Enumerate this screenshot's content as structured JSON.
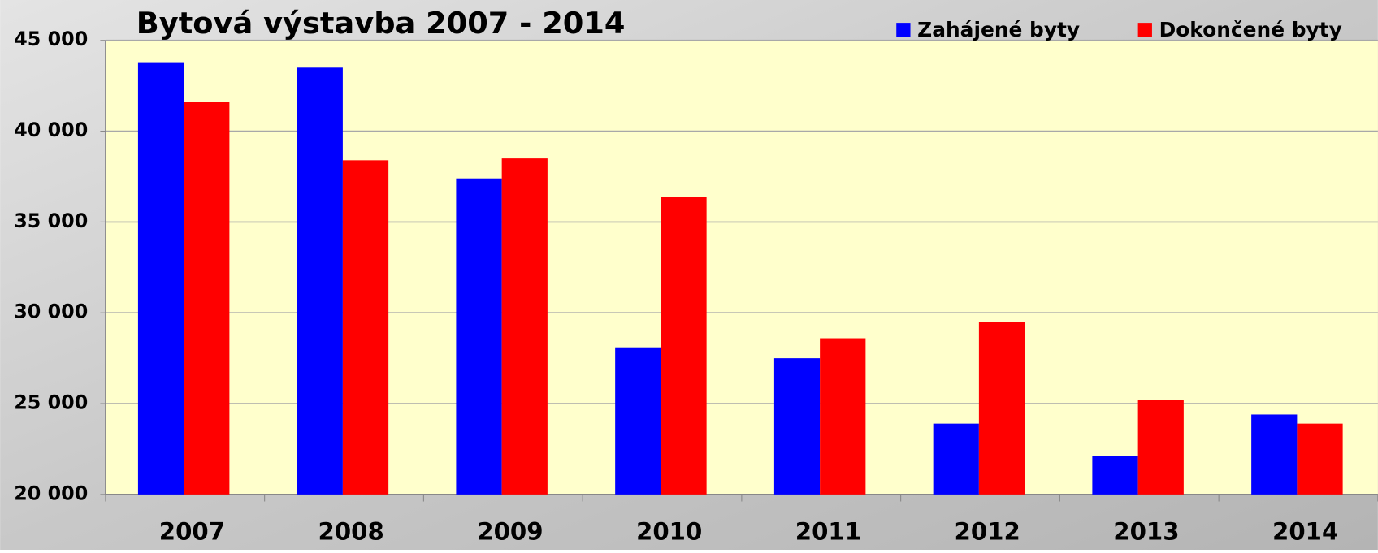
{
  "chart_data": {
    "type": "bar",
    "title": "Bytová výstavba 2007 - 2014",
    "categories": [
      "2007",
      "2008",
      "2009",
      "2010",
      "2011",
      "2012",
      "2013",
      "2014"
    ],
    "series": [
      {
        "name": "Zahájené byty",
        "color": "#0000ff",
        "values": [
          43800,
          43500,
          37400,
          28100,
          27500,
          23900,
          22100,
          24400
        ]
      },
      {
        "name": "Dokončené byty",
        "color": "#ff0000",
        "values": [
          41600,
          38400,
          38500,
          36400,
          28600,
          29500,
          25200,
          23900
        ]
      }
    ],
    "ylim": [
      20000,
      45000
    ],
    "yticks": [
      {
        "value": 20000,
        "label": "20 000"
      },
      {
        "value": 25000,
        "label": "25 000"
      },
      {
        "value": 30000,
        "label": "30 000"
      },
      {
        "value": 35000,
        "label": "35 000"
      },
      {
        "value": 40000,
        "label": "40 000"
      },
      {
        "value": 45000,
        "label": "45 000"
      }
    ],
    "grid": true,
    "legend": "upper right"
  }
}
